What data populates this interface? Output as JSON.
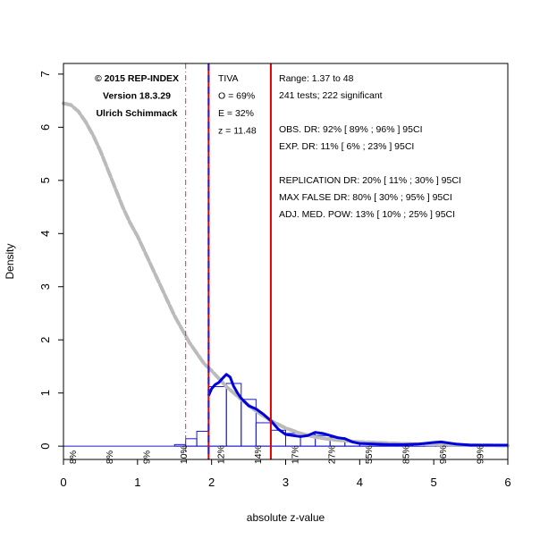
{
  "chart_data": {
    "type": "bar",
    "xlabel": "absolute z-value",
    "ylabel": "Density",
    "xlim": [
      0,
      6
    ],
    "ylim": [
      -0.25,
      7.2
    ],
    "xticks": [
      "0",
      "1",
      "2",
      "3",
      "4",
      "5",
      "6"
    ],
    "yticks": [
      "0",
      "1",
      "2",
      "3",
      "4",
      "5",
      "6",
      "7"
    ],
    "histogram": {
      "bin_edges": [
        0,
        1.5,
        1.65,
        1.8,
        1.96,
        2.2,
        2.4,
        2.6,
        2.8,
        3.0,
        3.2,
        3.4,
        3.6,
        3.8,
        4.0,
        4.5,
        5.0,
        5.5,
        6.0
      ],
      "densities": [
        0.0,
        0.03,
        0.14,
        0.28,
        1.12,
        1.18,
        0.88,
        0.44,
        0.3,
        0.24,
        0.22,
        0.2,
        0.16,
        0.1,
        0.05,
        0.04,
        0.03,
        0.02
      ]
    },
    "observed_density": {
      "x": [
        1.96,
        2.0,
        2.05,
        2.1,
        2.15,
        2.2,
        2.25,
        2.3,
        2.35,
        2.4,
        2.5,
        2.6,
        2.7,
        2.8,
        2.9,
        3.0,
        3.1,
        3.2,
        3.3,
        3.4,
        3.5,
        3.6,
        3.7,
        3.8,
        3.9,
        4.0,
        4.2,
        4.4,
        4.6,
        4.8,
        5.0,
        5.1,
        5.2,
        5.3,
        5.5,
        5.8,
        6.0
      ],
      "y": [
        0.95,
        1.08,
        1.16,
        1.2,
        1.28,
        1.35,
        1.3,
        1.12,
        1.0,
        0.9,
        0.76,
        0.7,
        0.6,
        0.48,
        0.32,
        0.22,
        0.2,
        0.18,
        0.2,
        0.26,
        0.24,
        0.2,
        0.16,
        0.14,
        0.08,
        0.05,
        0.04,
        0.03,
        0.03,
        0.04,
        0.07,
        0.08,
        0.06,
        0.04,
        0.02,
        0.02,
        0.02
      ]
    },
    "expected_density": {
      "x": [
        0.0,
        0.1,
        0.2,
        0.3,
        0.4,
        0.5,
        0.6,
        0.7,
        0.8,
        0.9,
        1.0,
        1.1,
        1.2,
        1.3,
        1.4,
        1.5,
        1.6,
        1.7,
        1.8,
        1.9,
        2.0,
        2.2,
        2.4,
        2.6,
        2.8,
        3.0,
        3.2,
        3.4,
        3.6,
        3.8,
        4.0,
        4.5,
        5.0,
        5.5,
        6.0
      ],
      "y": [
        6.45,
        6.42,
        6.3,
        6.1,
        5.85,
        5.55,
        5.2,
        4.85,
        4.5,
        4.2,
        3.95,
        3.65,
        3.35,
        3.05,
        2.75,
        2.45,
        2.2,
        1.95,
        1.75,
        1.55,
        1.42,
        1.12,
        0.88,
        0.66,
        0.48,
        0.34,
        0.24,
        0.17,
        0.13,
        0.1,
        0.08,
        0.05,
        0.03,
        0.02,
        0.01
      ]
    },
    "vertical_lines": [
      {
        "x": 1.65,
        "color": "#e53030",
        "style": "dashdot"
      },
      {
        "x": 1.96,
        "color": "#e00000",
        "style": "solid"
      },
      {
        "x": 1.96,
        "color": "#2020d0",
        "style": "dashed"
      },
      {
        "x": 2.8,
        "color": "#e00000",
        "style": "solid"
      }
    ],
    "bin_power_labels": [
      {
        "x": 0.13,
        "label": "8%"
      },
      {
        "x": 0.63,
        "label": "8%"
      },
      {
        "x": 1.13,
        "label": "9%"
      },
      {
        "x": 1.63,
        "label": "10%"
      },
      {
        "x": 2.13,
        "label": "12%"
      },
      {
        "x": 2.63,
        "label": "14%"
      },
      {
        "x": 3.13,
        "label": "17%"
      },
      {
        "x": 3.63,
        "label": "27%"
      },
      {
        "x": 4.13,
        "label": "55%"
      },
      {
        "x": 4.63,
        "label": "85%"
      },
      {
        "x": 5.13,
        "label": "96%"
      },
      {
        "x": 5.63,
        "label": "99%"
      }
    ],
    "colors": {
      "histogram": "#1a1acc",
      "observed": "#0000dd",
      "expected": "#bbbbbb",
      "criterion": "#e00000",
      "axis": "#000000"
    }
  },
  "annotations": {
    "left_block": [
      "© 2015 REP-INDEX",
      "Version 18.3.29",
      "Ulrich Schimmack"
    ],
    "tiva_block": [
      "TIVA",
      "O = 69%",
      "E = 32%",
      "z = 11.48"
    ],
    "stats_block": [
      "Range: 1.37 to 48",
      "241 tests; 222 significant",
      "",
      "OBS. DR: 92% [ 89% ; 96% ] 95CI",
      "EXP. DR: 11% [ 6% ; 23% ] 95CI",
      "",
      "REPLICATION DR: 20% [ 11% ; 30% ] 95CI",
      "MAX FALSE DR: 80% [ 30% ; 95% ] 95CI",
      "ADJ. MED. POW: 13% [ 10% ; 25% ] 95CI"
    ]
  }
}
